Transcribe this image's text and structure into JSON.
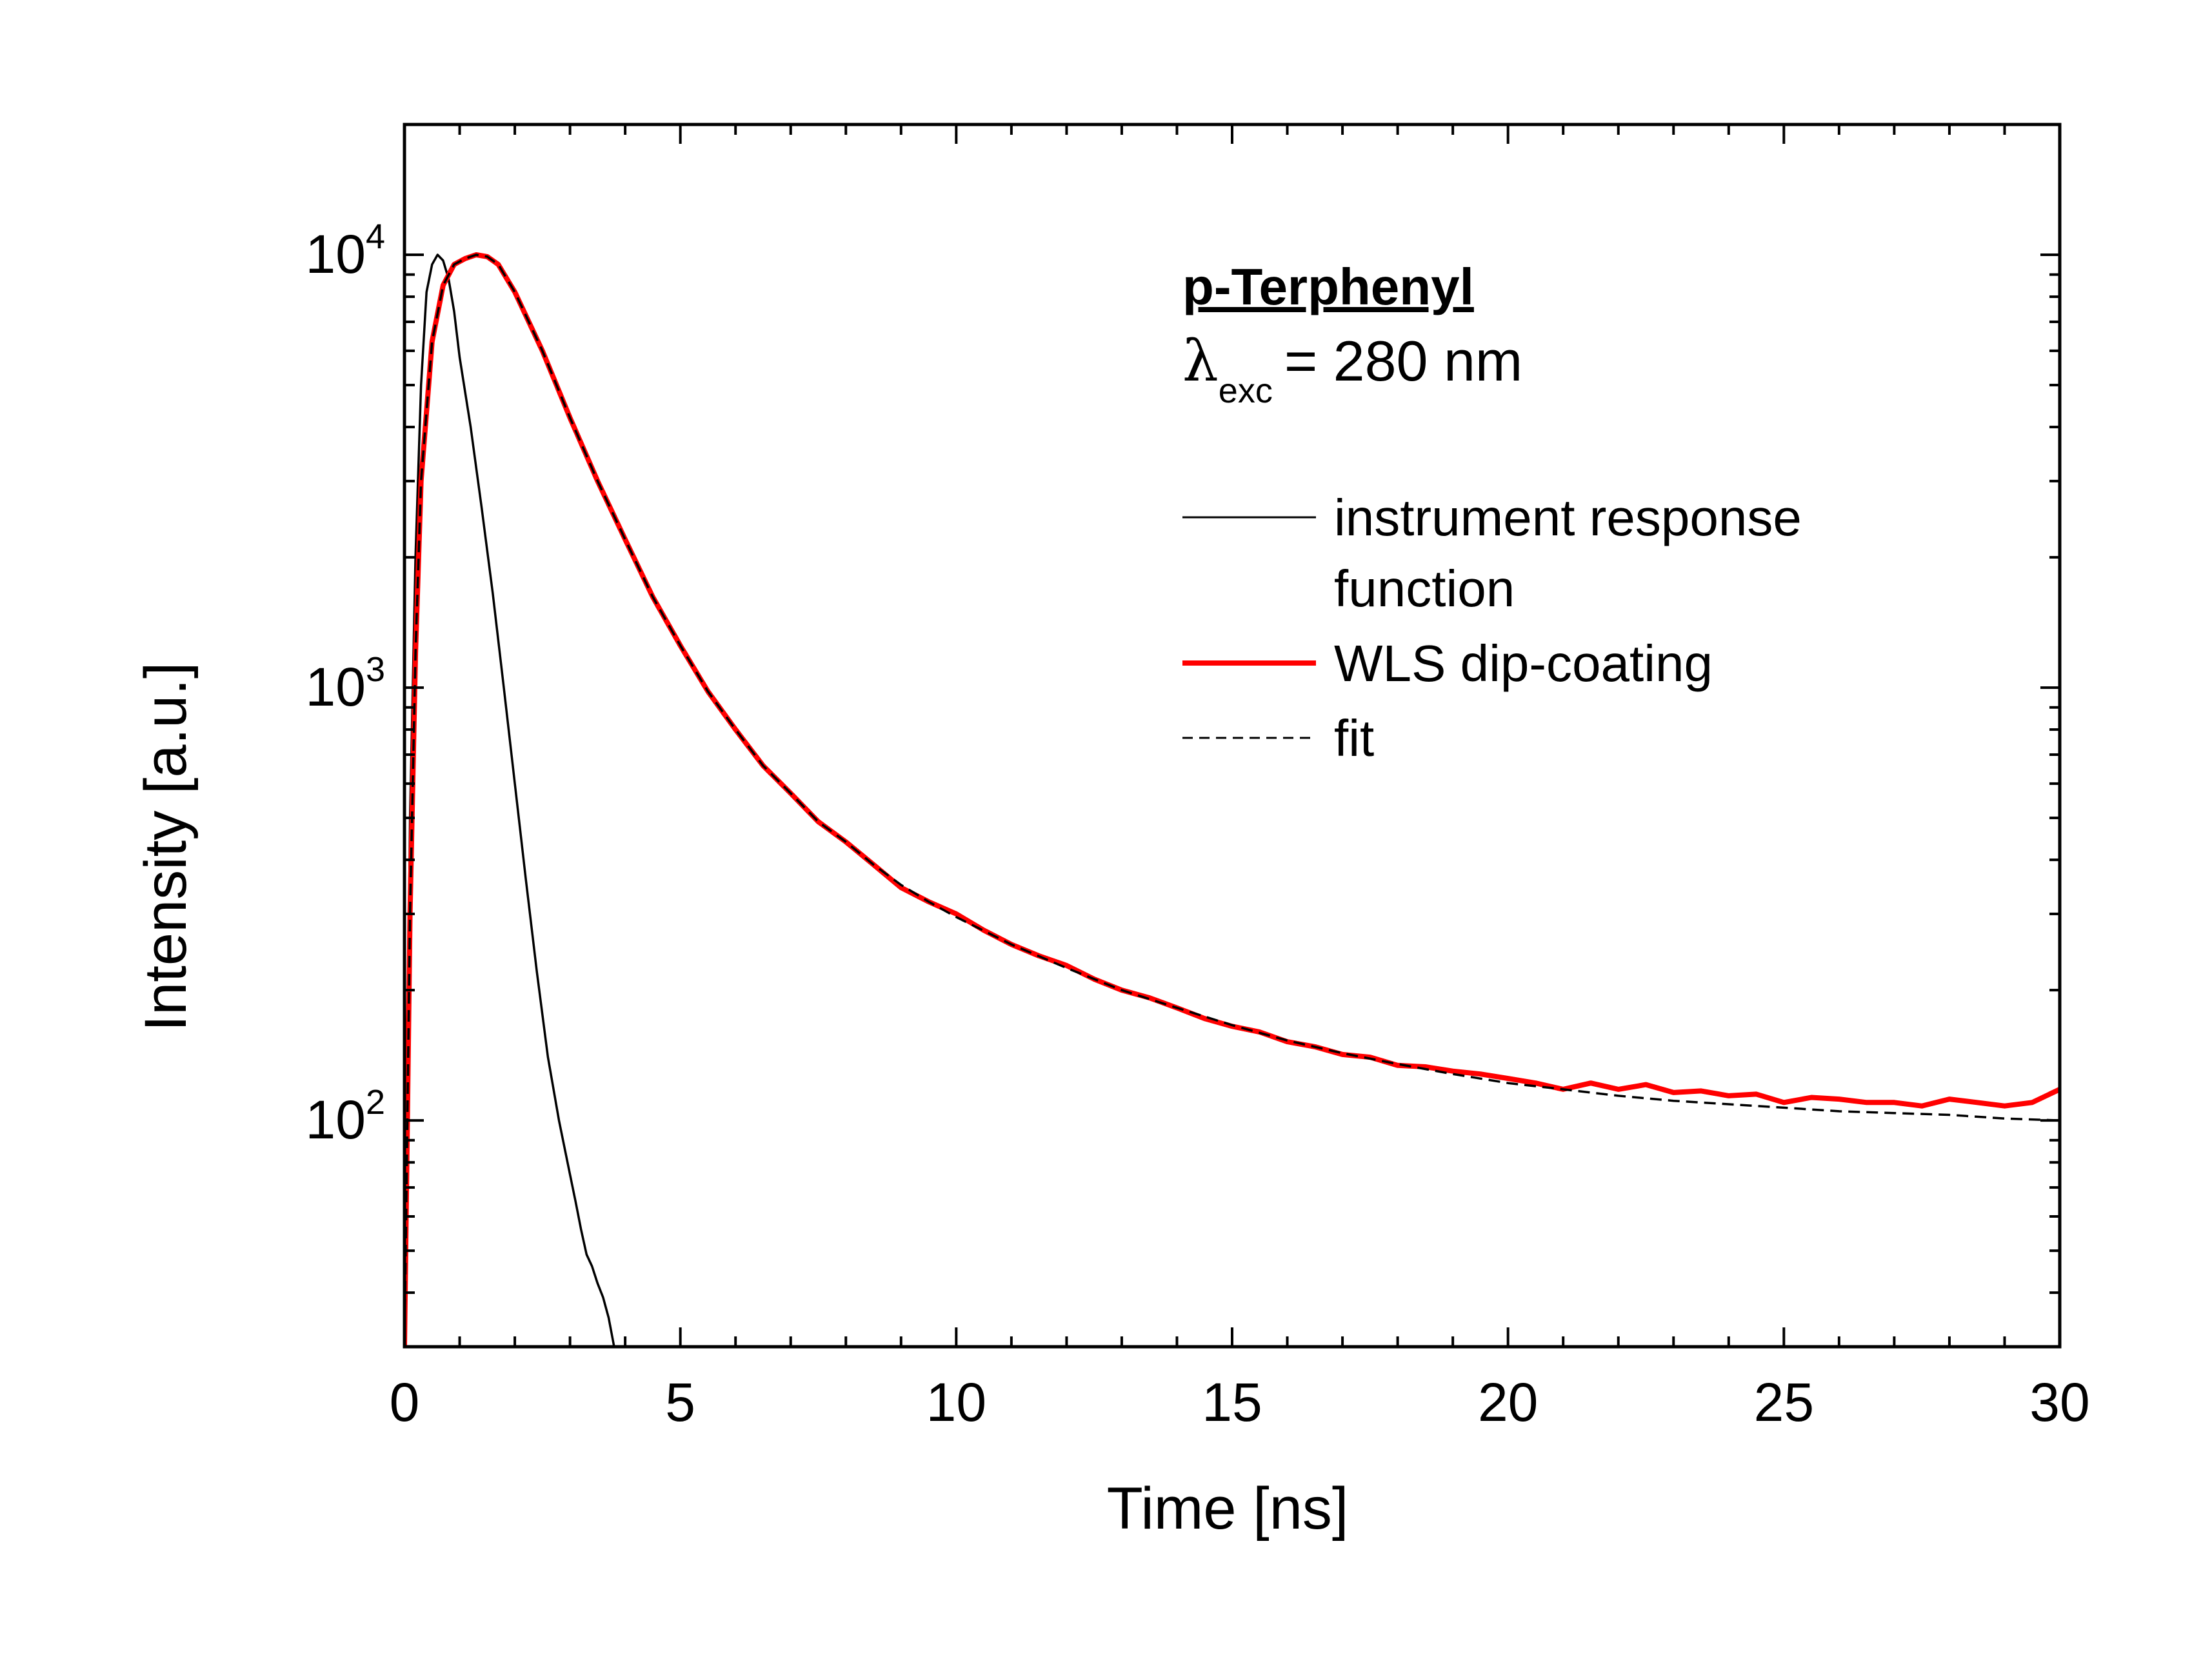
{
  "chart_data": {
    "type": "line",
    "title": "",
    "xlabel": "Time [ns]",
    "ylabel": "Intensity [a.u.]",
    "xlim": [
      0,
      30
    ],
    "ylim": [
      30,
      20000
    ],
    "yscale": "log",
    "x_ticks": [
      0,
      5,
      10,
      15,
      20,
      25,
      30
    ],
    "x_tick_labels": [
      "0",
      "5",
      "10",
      "15",
      "20",
      "25",
      "30"
    ],
    "y_ticks": [
      {
        "value": 100,
        "base": "10",
        "exp": "2"
      },
      {
        "value": 1000,
        "base": "10",
        "exp": "3"
      },
      {
        "value": 10000,
        "base": "10",
        "exp": "4"
      }
    ],
    "grid": false,
    "legend_position": "top-right",
    "annotation": {
      "title": "p-Terphenyl",
      "lambda_symbol": "λ",
      "lambda_subscript": "exc",
      "lambda_value": "= 280 nm"
    },
    "series": [
      {
        "name": "instrument response function",
        "legend_lines": [
          "instrument response",
          "function"
        ],
        "color": "#000000",
        "style": "solid",
        "x": [
          0.0,
          0.1,
          0.2,
          0.3,
          0.4,
          0.5,
          0.6,
          0.7,
          0.8,
          0.9,
          1.0,
          1.2,
          1.4,
          1.6,
          1.8,
          2.0,
          2.2,
          2.4,
          2.6,
          2.8,
          3.0,
          3.1,
          3.2,
          3.3,
          3.4,
          3.5,
          3.6,
          3.7,
          3.8
        ],
        "y": [
          30,
          500,
          2000,
          5000,
          8200,
          9500,
          10000,
          9700,
          8800,
          7400,
          5800,
          4000,
          2600,
          1650,
          1000,
          600,
          360,
          220,
          140,
          100,
          75,
          65,
          56,
          49,
          46,
          42,
          39,
          35,
          30
        ]
      },
      {
        "name": "WLS dip-coating",
        "color": "#ff0000",
        "style": "solid",
        "x": [
          0.0,
          0.1,
          0.2,
          0.3,
          0.5,
          0.7,
          0.9,
          1.1,
          1.3,
          1.5,
          1.7,
          2.0,
          2.5,
          3.0,
          3.5,
          4.0,
          4.5,
          5.0,
          5.5,
          6.0,
          6.5,
          7.0,
          7.5,
          8.0,
          8.5,
          9.0,
          9.5,
          10.0,
          10.5,
          11.0,
          11.5,
          12.0,
          12.5,
          13.0,
          13.5,
          14.0,
          14.5,
          15.0,
          15.5,
          16.0,
          16.5,
          17.0,
          17.5,
          18.0,
          18.5,
          19.0,
          19.5,
          20.0,
          20.5,
          21.0,
          21.5,
          22.0,
          22.5,
          23.0,
          23.5,
          24.0,
          24.5,
          25.0,
          25.5,
          26.0,
          26.5,
          27.0,
          27.5,
          28.0,
          28.5,
          29.0,
          29.5,
          30.0
        ],
        "y": [
          30,
          300,
          1200,
          3000,
          6300,
          8500,
          9500,
          9800,
          10000,
          9900,
          9500,
          8200,
          6000,
          4200,
          3000,
          2200,
          1620,
          1250,
          980,
          800,
          660,
          570,
          490,
          440,
          390,
          345,
          320,
          300,
          275,
          255,
          240,
          228,
          212,
          200,
          192,
          182,
          172,
          165,
          160,
          152,
          148,
          142,
          140,
          134,
          133,
          130,
          128,
          125,
          122,
          118,
          122,
          118,
          121,
          116,
          117,
          114,
          115,
          110,
          113,
          112,
          110,
          110,
          108,
          112,
          110,
          108,
          110,
          118
        ]
      },
      {
        "name": "fit",
        "color": "#000000",
        "style": "dashed",
        "x": [
          0.0,
          0.1,
          0.2,
          0.3,
          0.5,
          0.7,
          0.9,
          1.1,
          1.3,
          1.5,
          1.7,
          2.0,
          2.5,
          3.0,
          3.5,
          4.0,
          4.5,
          5.0,
          5.5,
          6.0,
          6.5,
          7.0,
          7.5,
          8.0,
          8.5,
          9.0,
          9.5,
          10.0,
          11.0,
          12.0,
          13.0,
          14.0,
          15.0,
          16.0,
          17.0,
          18.0,
          19.0,
          20.0,
          21.0,
          22.0,
          23.0,
          24.0,
          25.0,
          26.0,
          27.0,
          28.0,
          29.0,
          30.0
        ],
        "y": [
          30,
          300,
          1200,
          3000,
          6300,
          8500,
          9500,
          9800,
          10000,
          9900,
          9500,
          8200,
          6000,
          4200,
          3000,
          2200,
          1620,
          1250,
          980,
          800,
          660,
          570,
          490,
          440,
          390,
          350,
          320,
          295,
          255,
          225,
          200,
          182,
          166,
          153,
          143,
          135,
          128,
          122,
          118,
          114,
          111,
          109,
          107,
          105,
          104,
          103,
          101,
          100
        ]
      }
    ]
  }
}
